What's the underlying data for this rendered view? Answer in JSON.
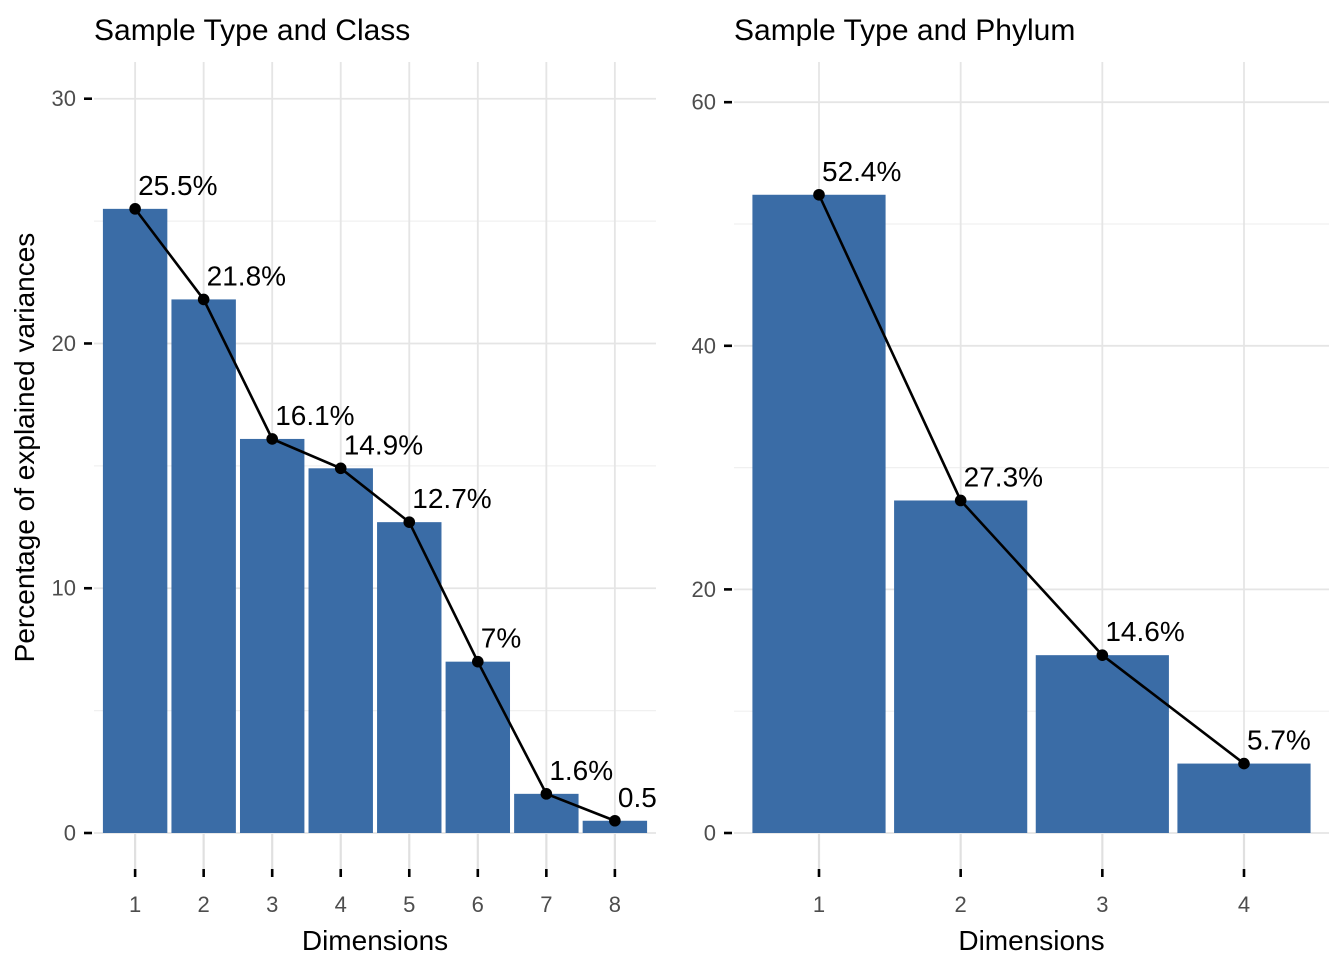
{
  "colors": {
    "background": "#FFFFFF",
    "bar_fill": "#3A6CA6",
    "trend_line": "#000000",
    "trend_point": "#000000",
    "grid_major": "#E5E5E5",
    "grid_minor": "#F0F0F0",
    "axis_tick_mark": "#000000",
    "axis_tick_stem": "#E0E0E0",
    "axis_tick_label": "#4D4D4D",
    "text": "#000000"
  },
  "chart_data": [
    {
      "type": "bar+line",
      "title": "Sample Type and Class",
      "xlabel": "Dimensions",
      "ylabel": "Percentage of explained variances",
      "categories": [
        "1",
        "2",
        "3",
        "4",
        "5",
        "6",
        "7",
        "8"
      ],
      "values": [
        25.5,
        21.8,
        16.1,
        14.9,
        12.7,
        7,
        1.6,
        0.5
      ],
      "point_labels": [
        "25.5%",
        "21.8%",
        "16.1%",
        "14.9%",
        "12.7%",
        "7%",
        "1.6%",
        "0.5"
      ],
      "y_ticks": [
        0,
        10,
        20,
        30
      ],
      "y_minor_ticks": [
        5,
        15,
        25
      ],
      "ylim": [
        0,
        31.5
      ],
      "grid": "major+minor",
      "legend": "none"
    },
    {
      "type": "bar+line",
      "title": "Sample Type and Phylum",
      "xlabel": "Dimensions",
      "ylabel": "",
      "categories": [
        "1",
        "2",
        "3",
        "4"
      ],
      "values": [
        52.4,
        27.3,
        14.6,
        5.7
      ],
      "point_labels": [
        "52.4%",
        "27.3%",
        "14.6%",
        "5.7%"
      ],
      "y_ticks": [
        0,
        20,
        40,
        60
      ],
      "y_minor_ticks": [
        10,
        30,
        50
      ],
      "ylim": [
        0,
        63.3
      ],
      "grid": "major+minor",
      "legend": "none"
    }
  ]
}
